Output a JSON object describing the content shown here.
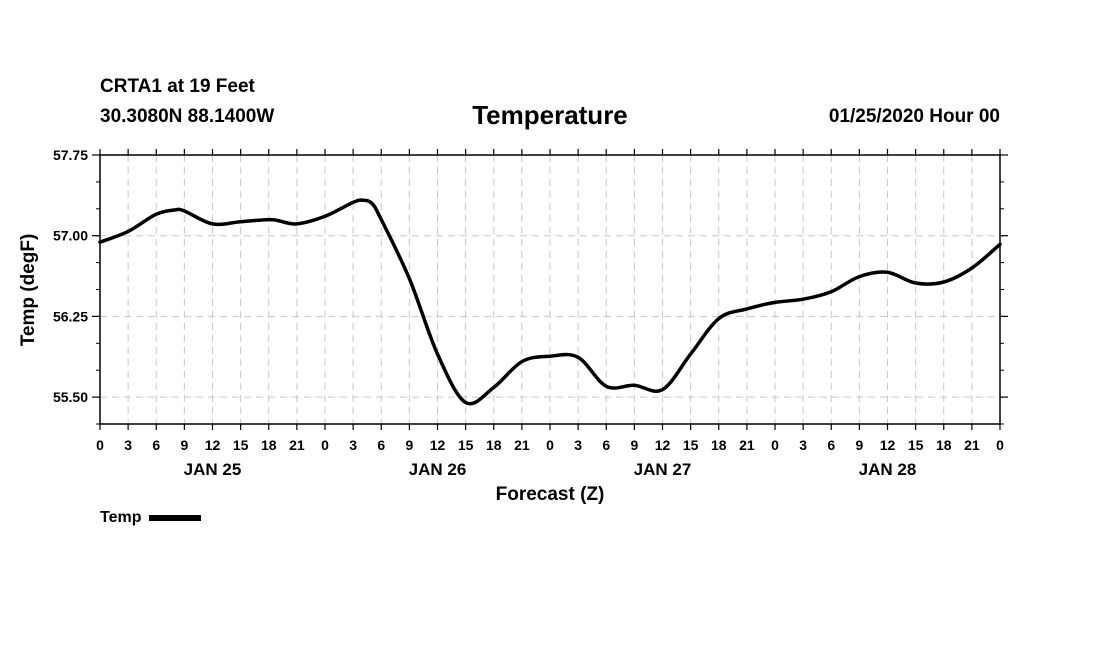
{
  "header": {
    "station": "CRTA1 at 19 Feet",
    "coords": "30.3080N 88.1400W",
    "title": "Temperature",
    "issued": "01/25/2020 Hour 00"
  },
  "legend": {
    "label": "Temp"
  },
  "chart_data": {
    "type": "line",
    "title": "Temperature",
    "xlabel": "Forecast (Z)",
    "ylabel": "Temp (degF)",
    "x_unit": "forecast hour from 01/25/2020 00Z",
    "xlim": [
      0,
      96
    ],
    "ylim": [
      55.25,
      57.75
    ],
    "y_ticks": [
      "55.50",
      "56.25",
      "57.00",
      "57.75"
    ],
    "x_tick_hours": [
      0,
      3,
      6,
      9,
      12,
      15,
      18,
      21,
      24,
      27,
      30,
      33,
      36,
      39,
      42,
      45,
      48,
      51,
      54,
      57,
      60,
      63,
      66,
      69,
      72,
      75,
      78,
      81,
      84,
      87,
      90,
      93,
      96
    ],
    "x_tick_labels": [
      "0",
      "3",
      "6",
      "9",
      "12",
      "15",
      "18",
      "21",
      "0",
      "3",
      "6",
      "9",
      "12",
      "15",
      "18",
      "21",
      "0",
      "3",
      "6",
      "9",
      "12",
      "15",
      "18",
      "21",
      "0",
      "3",
      "6",
      "9",
      "12",
      "15",
      "18",
      "21",
      "0"
    ],
    "day_labels": [
      {
        "label": "JAN 25",
        "hour": 12
      },
      {
        "label": "JAN 26",
        "hour": 36
      },
      {
        "label": "JAN 27",
        "hour": 60
      },
      {
        "label": "JAN 28",
        "hour": 84
      }
    ],
    "grid": true,
    "legend_position": "bottom-left",
    "series": [
      {
        "name": "Temp",
        "color": "#000000",
        "x": [
          0,
          3,
          6,
          8,
          9,
          12,
          15,
          18,
          19,
          21,
          24,
          27,
          28,
          29,
          30,
          33,
          36,
          39,
          42,
          45,
          48,
          51,
          54,
          57,
          60,
          63,
          66,
          69,
          72,
          75,
          78,
          81,
          84,
          87,
          90,
          93,
          96
        ],
        "y": [
          56.94,
          57.04,
          57.2,
          57.24,
          57.23,
          57.11,
          57.13,
          57.15,
          57.14,
          57.11,
          57.18,
          57.31,
          57.33,
          57.3,
          57.15,
          56.6,
          55.9,
          55.45,
          55.59,
          55.83,
          55.88,
          55.87,
          55.6,
          55.61,
          55.57,
          55.9,
          56.23,
          56.32,
          56.38,
          56.41,
          56.48,
          56.62,
          56.66,
          56.56,
          56.57,
          56.7,
          56.92
        ]
      }
    ]
  }
}
